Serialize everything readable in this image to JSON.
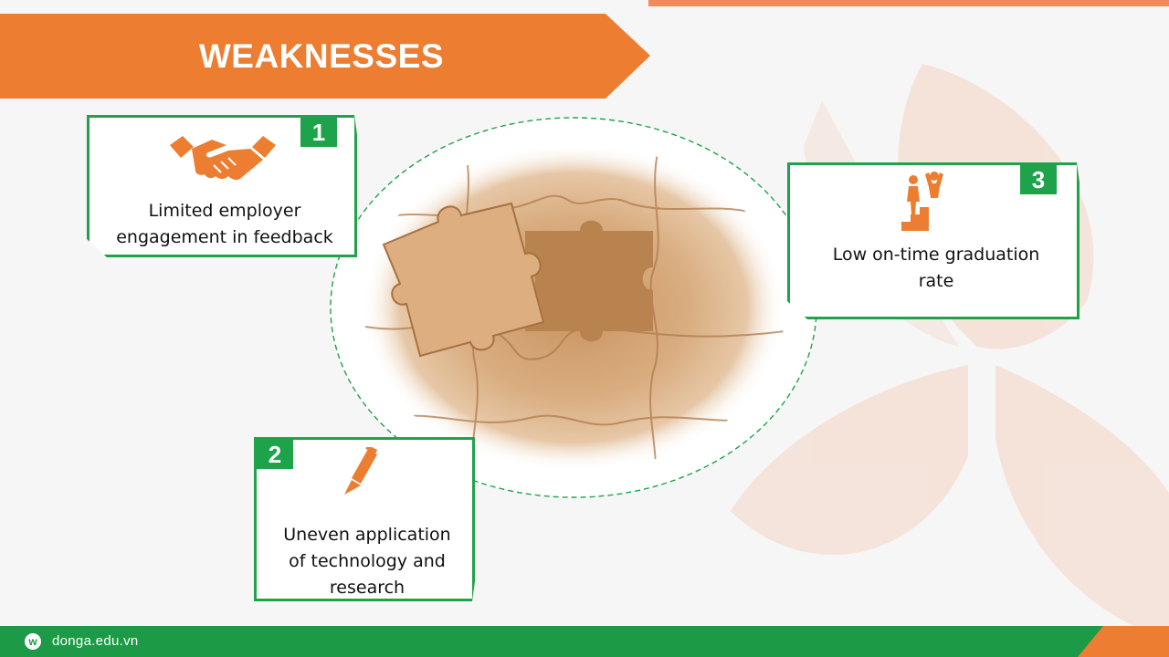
{
  "title": "WEAKNESSES",
  "items": [
    {
      "number": "1",
      "text_lines": [
        "Limited employer",
        "engagement in feedback"
      ],
      "icon": "handshake-icon"
    },
    {
      "number": "2",
      "text_lines": [
        "Uneven application",
        "of technology and",
        "research"
      ],
      "icon": "pencil-icon"
    },
    {
      "number": "3",
      "text_lines": [
        "Low on-time graduation",
        "rate"
      ],
      "icon": "stairs-person-icon"
    }
  ],
  "center_image": "puzzle-missing-piece-image",
  "footer": {
    "site": "donga.edu.vn",
    "logo_letter": "w"
  },
  "colors": {
    "accent_orange": "#ec7d31",
    "accent_green": "#21a24a",
    "puzzle_wood": "#d4a87c"
  }
}
